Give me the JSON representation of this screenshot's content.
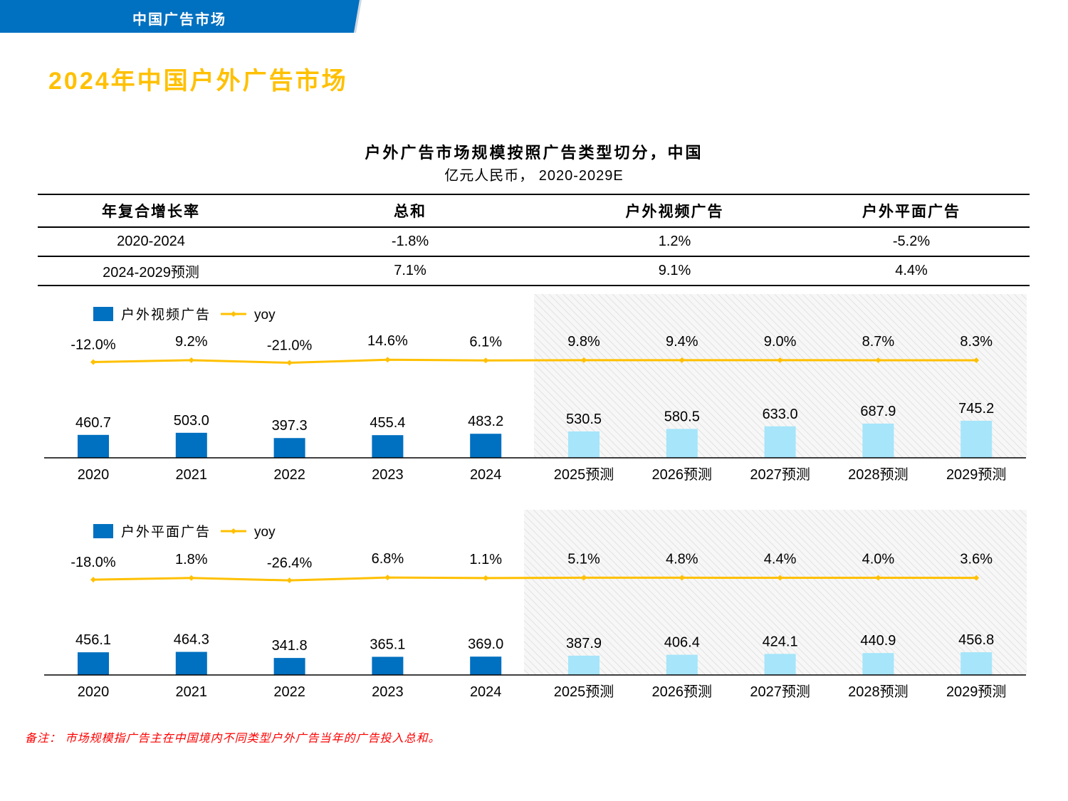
{
  "header": {
    "section_label": "中国广告市场"
  },
  "page_title": "2024年中国户外广告市场",
  "chart_title": "户外广告市场规模按照广告类型切分，中国",
  "chart_subtitle": "亿元人民币， 2020-2029E",
  "cagr_table": {
    "headers": [
      "年复合增长率",
      "总和",
      "户外视频广告",
      "户外平面广告"
    ],
    "rows": [
      [
        "2020-2024",
        "-1.8%",
        "1.2%",
        "-5.2%"
      ],
      [
        "2024-2029预测",
        "7.1%",
        "9.1%",
        "4.4%"
      ]
    ]
  },
  "colors": {
    "actual_bar": "#0070C0",
    "forecast_bar": "#A6E5FA",
    "yoy_line": "#FFC000",
    "header_bar": "#0070C0",
    "title": "#FFC000",
    "footnote": "#FF0000"
  },
  "chart_data": [
    {
      "type": "bar",
      "categories": [
        "2020",
        "2021",
        "2022",
        "2023",
        "2024",
        "2025预测",
        "2026预测",
        "2027预测",
        "2028预测",
        "2029预测"
      ],
      "forecast_from_index": 5,
      "series": [
        {
          "name": "户外视频广告",
          "values": [
            460.7,
            503.0,
            397.3,
            455.4,
            483.2,
            530.5,
            580.5,
            633.0,
            687.9,
            745.2
          ],
          "labels": [
            "460.7",
            "503.0",
            "397.3",
            "455.4",
            "483.2",
            "530.5",
            "580.5",
            "633.0",
            "687.9",
            "745.2"
          ]
        },
        {
          "name": "yoy",
          "type": "line",
          "values": [
            -12.0,
            9.2,
            -21.0,
            14.6,
            6.1,
            9.8,
            9.4,
            9.0,
            8.7,
            8.3
          ],
          "labels": [
            "-12.0%",
            "9.2%",
            "-21.0%",
            "14.6%",
            "6.1%",
            "9.8%",
            "9.4%",
            "9.0%",
            "8.7%",
            "8.3%"
          ]
        }
      ],
      "legend": "top-left"
    },
    {
      "type": "bar",
      "categories": [
        "2020",
        "2021",
        "2022",
        "2023",
        "2024",
        "2025预测",
        "2026预测",
        "2027预测",
        "2028预测",
        "2029预测"
      ],
      "forecast_from_index": 5,
      "series": [
        {
          "name": "户外平面广告",
          "values": [
            456.1,
            464.3,
            341.8,
            365.1,
            369.0,
            387.9,
            406.4,
            424.1,
            440.9,
            456.8
          ],
          "labels": [
            "456.1",
            "464.3",
            "341.8",
            "365.1",
            "369.0",
            "387.9",
            "406.4",
            "424.1",
            "440.9",
            "456.8"
          ]
        },
        {
          "name": "yoy",
          "type": "line",
          "values": [
            -18.0,
            1.8,
            -26.4,
            6.8,
            1.1,
            5.1,
            4.8,
            4.4,
            4.0,
            3.6
          ],
          "labels": [
            "-18.0%",
            "1.8%",
            "-26.4%",
            "6.8%",
            "1.1%",
            "5.1%",
            "4.8%",
            "4.4%",
            "4.0%",
            "3.6%"
          ]
        }
      ],
      "legend": "top-left"
    }
  ],
  "footnote": "备注：  市场规模指广告主在中国境内不同类型户外广告当年的广告投入总和。"
}
